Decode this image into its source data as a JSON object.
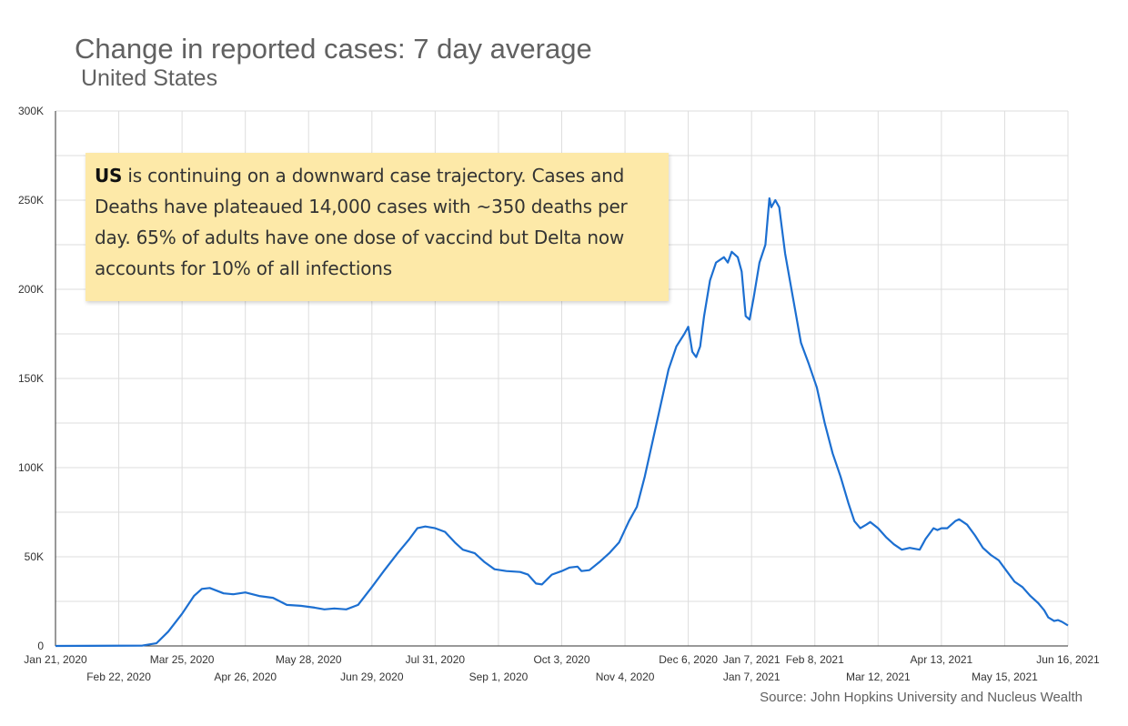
{
  "header": {
    "title": "Change in reported cases: 7 day average",
    "subtitle": "United States"
  },
  "annotation": {
    "highlight": "US",
    "text": " is continuing on a downward case trajectory. Cases and Deaths have plateaued 14,000 cases with ~350 deaths per day. 65% of adults have one dose of vaccind but Delta now accounts for 10% of all infections"
  },
  "source": "Source: John Hopkins University and Nucleus Wealth",
  "colors": {
    "line": "#1c6fd1",
    "grid": "#dddddd",
    "axis": "#333333",
    "note_bg": "#fde9a8"
  },
  "chart_data": {
    "type": "line",
    "ylim": [
      0,
      300000
    ],
    "y_ticks": [
      "0",
      "50K",
      "100K",
      "150K",
      "200K",
      "250K",
      "300K"
    ],
    "x_ticks_top": [
      "Jan 21, 2020",
      "Mar 25, 2020",
      "May 28, 2020",
      "Jul 31, 2020",
      "Oct 3, 2020",
      "Dec 6, 2020",
      "Jan 7, 2021",
      "Feb 8, 2021",
      "Apr 13, 2021",
      "Jun 16, 2021"
    ],
    "x_ticks_bottom": [
      "Feb 22, 2020",
      "Apr 26, 2020",
      "Jun 29, 2020",
      "Sep 1, 2020",
      "Nov 4, 2020",
      "Jan 7, 2021",
      "Mar 12, 2021",
      "May 15, 2021"
    ],
    "x_range": [
      "2020-01-21",
      "2021-06-16"
    ],
    "series": [
      {
        "points": [
          [
            "2020-01-21",
            0
          ],
          [
            "2020-03-05",
            200
          ],
          [
            "2020-03-12",
            1500
          ],
          [
            "2020-03-18",
            8000
          ],
          [
            "2020-03-25",
            18000
          ],
          [
            "2020-03-31",
            28000
          ],
          [
            "2020-04-04",
            32000
          ],
          [
            "2020-04-08",
            32500
          ],
          [
            "2020-04-15",
            29500
          ],
          [
            "2020-04-20",
            29000
          ],
          [
            "2020-04-26",
            30000
          ],
          [
            "2020-05-03",
            28000
          ],
          [
            "2020-05-10",
            27000
          ],
          [
            "2020-05-17",
            23000
          ],
          [
            "2020-05-24",
            22500
          ],
          [
            "2020-05-31",
            21500
          ],
          [
            "2020-06-05",
            20500
          ],
          [
            "2020-06-10",
            21000
          ],
          [
            "2020-06-16",
            20500
          ],
          [
            "2020-06-22",
            23000
          ],
          [
            "2020-06-29",
            33000
          ],
          [
            "2020-07-05",
            42000
          ],
          [
            "2020-07-12",
            52000
          ],
          [
            "2020-07-18",
            60000
          ],
          [
            "2020-07-22",
            66000
          ],
          [
            "2020-07-26",
            67000
          ],
          [
            "2020-07-31",
            66000
          ],
          [
            "2020-08-05",
            64000
          ],
          [
            "2020-08-10",
            58000
          ],
          [
            "2020-08-14",
            54000
          ],
          [
            "2020-08-20",
            52000
          ],
          [
            "2020-08-25",
            47000
          ],
          [
            "2020-08-30",
            43000
          ],
          [
            "2020-09-05",
            42000
          ],
          [
            "2020-09-12",
            41500
          ],
          [
            "2020-09-16",
            40000
          ],
          [
            "2020-09-20",
            35000
          ],
          [
            "2020-09-23",
            34500
          ],
          [
            "2020-09-28",
            40000
          ],
          [
            "2020-10-03",
            42000
          ],
          [
            "2020-10-07",
            44000
          ],
          [
            "2020-10-11",
            44500
          ],
          [
            "2020-10-13",
            42000
          ],
          [
            "2020-10-17",
            42500
          ],
          [
            "2020-10-22",
            47000
          ],
          [
            "2020-10-27",
            52000
          ],
          [
            "2020-11-01",
            58000
          ],
          [
            "2020-11-06",
            70000
          ],
          [
            "2020-11-10",
            78000
          ],
          [
            "2020-11-14",
            95000
          ],
          [
            "2020-11-18",
            115000
          ],
          [
            "2020-11-22",
            135000
          ],
          [
            "2020-11-26",
            155000
          ],
          [
            "2020-11-30",
            168000
          ],
          [
            "2020-12-04",
            175000
          ],
          [
            "2020-12-06",
            179000
          ],
          [
            "2020-12-08",
            165000
          ],
          [
            "2020-12-10",
            162000
          ],
          [
            "2020-12-12",
            168000
          ],
          [
            "2020-12-14",
            185000
          ],
          [
            "2020-12-17",
            205000
          ],
          [
            "2020-12-20",
            215000
          ],
          [
            "2020-12-24",
            218000
          ],
          [
            "2020-12-26",
            215000
          ],
          [
            "2020-12-28",
            221000
          ],
          [
            "2020-12-31",
            218000
          ],
          [
            "2021-01-02",
            210000
          ],
          [
            "2021-01-04",
            185000
          ],
          [
            "2021-01-06",
            183000
          ],
          [
            "2021-01-08",
            195000
          ],
          [
            "2021-01-11",
            215000
          ],
          [
            "2021-01-14",
            225000
          ],
          [
            "2021-01-16",
            251000
          ],
          [
            "2021-01-17",
            246000
          ],
          [
            "2021-01-19",
            250000
          ],
          [
            "2021-01-21",
            246000
          ],
          [
            "2021-01-24",
            220000
          ],
          [
            "2021-01-28",
            195000
          ],
          [
            "2021-02-01",
            170000
          ],
          [
            "2021-02-05",
            158000
          ],
          [
            "2021-02-09",
            145000
          ],
          [
            "2021-02-13",
            125000
          ],
          [
            "2021-02-17",
            108000
          ],
          [
            "2021-02-21",
            95000
          ],
          [
            "2021-02-25",
            80000
          ],
          [
            "2021-02-28",
            70000
          ],
          [
            "2021-03-03",
            66000
          ],
          [
            "2021-03-06",
            68000
          ],
          [
            "2021-03-08",
            69500
          ],
          [
            "2021-03-12",
            66000
          ],
          [
            "2021-03-16",
            61000
          ],
          [
            "2021-03-20",
            57000
          ],
          [
            "2021-03-24",
            54000
          ],
          [
            "2021-03-28",
            55000
          ],
          [
            "2021-04-02",
            54000
          ],
          [
            "2021-04-05",
            60000
          ],
          [
            "2021-04-09",
            66000
          ],
          [
            "2021-04-11",
            65000
          ],
          [
            "2021-04-13",
            66000
          ],
          [
            "2021-04-16",
            66000
          ],
          [
            "2021-04-20",
            70000
          ],
          [
            "2021-04-22",
            71000
          ],
          [
            "2021-04-26",
            68000
          ],
          [
            "2021-04-30",
            62000
          ],
          [
            "2021-05-04",
            55000
          ],
          [
            "2021-05-08",
            51000
          ],
          [
            "2021-05-12",
            48000
          ],
          [
            "2021-05-16",
            42000
          ],
          [
            "2021-05-20",
            36000
          ],
          [
            "2021-05-24",
            33000
          ],
          [
            "2021-05-28",
            28000
          ],
          [
            "2021-06-01",
            24000
          ],
          [
            "2021-06-04",
            20000
          ],
          [
            "2021-06-06",
            16000
          ],
          [
            "2021-06-09",
            14000
          ],
          [
            "2021-06-11",
            14500
          ],
          [
            "2021-06-13",
            13500
          ],
          [
            "2021-06-16",
            11500
          ]
        ]
      }
    ]
  }
}
